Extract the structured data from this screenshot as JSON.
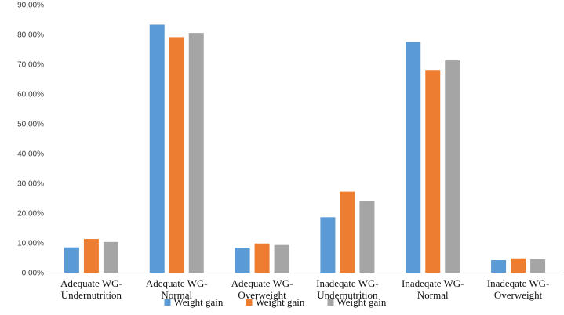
{
  "chart_data": {
    "type": "bar",
    "title": "",
    "xlabel": "",
    "ylabel": "",
    "categories": [
      [
        "Adequate WG-",
        "Undernutrition"
      ],
      [
        "Adequate WG-",
        "Normal"
      ],
      [
        "Adequate WG-",
        "Overweight"
      ],
      [
        "Inadeqate WG-",
        "Undernutrition"
      ],
      [
        "Inadeqate WG-",
        "Normal"
      ],
      [
        "Inadeqate WG-",
        "Overweight"
      ]
    ],
    "series": [
      {
        "name": "Weight gain",
        "color": "#5B9BD5",
        "values": [
          8.5,
          83.3,
          8.4,
          18.6,
          77.5,
          4.2
        ]
      },
      {
        "name": "Weight gain",
        "color": "#ED7D31",
        "values": [
          11.3,
          79.1,
          9.8,
          27.2,
          68.1,
          4.8
        ]
      },
      {
        "name": "Weight gain",
        "color": "#A5A5A5",
        "values": [
          10.3,
          80.5,
          9.3,
          24.2,
          71.3,
          4.5
        ]
      }
    ],
    "yticks": [
      "0.00%",
      "10.00%",
      "20.00%",
      "30.00%",
      "40.00%",
      "50.00%",
      "60.00%",
      "70.00%",
      "80.00%",
      "90.00%"
    ],
    "ylim": [
      0,
      90
    ],
    "grid": false,
    "legend": "bottom"
  }
}
